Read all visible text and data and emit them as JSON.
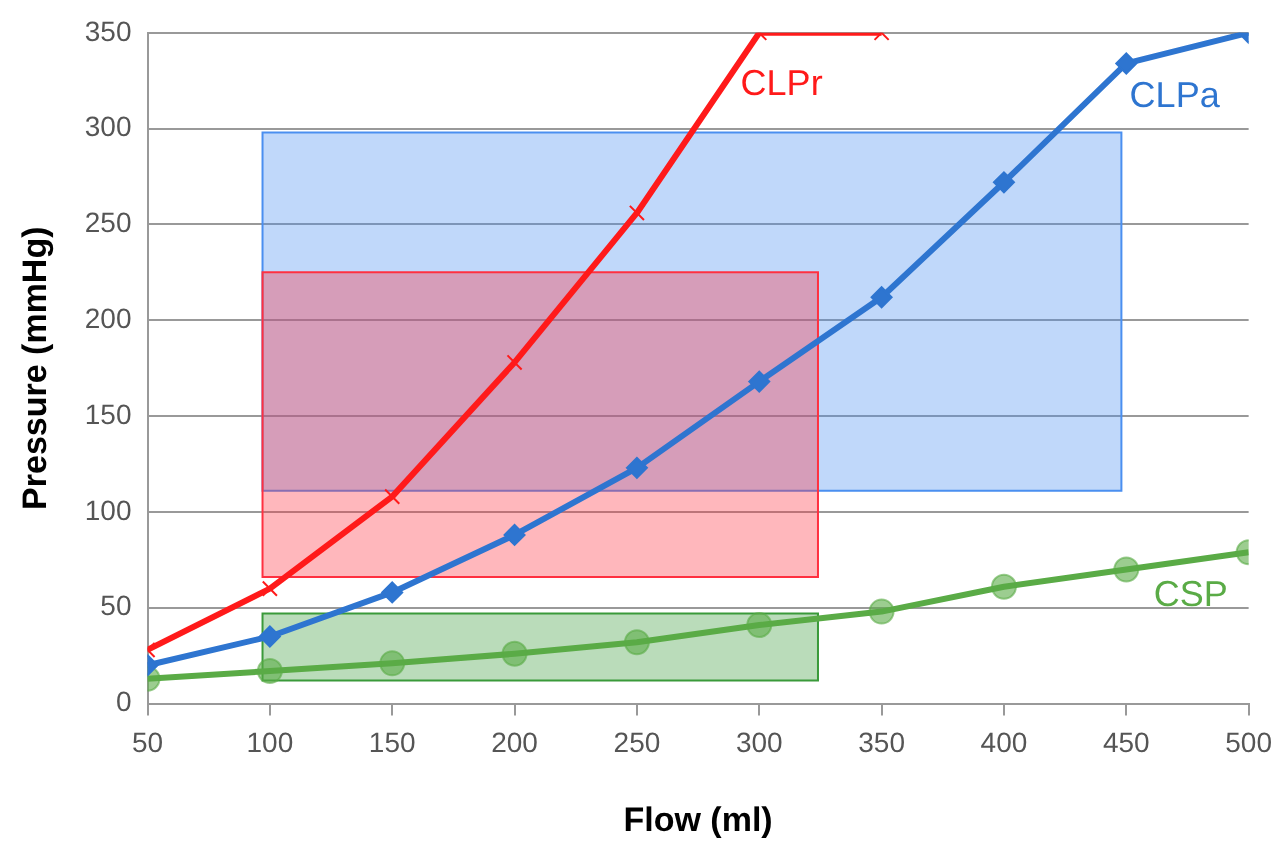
{
  "chart_data": {
    "type": "line",
    "xlabel": "Flow (ml)",
    "ylabel": "Pressure (mmHg)",
    "xlim": [
      50,
      500
    ],
    "xticks": [
      50,
      100,
      150,
      200,
      250,
      300,
      350,
      400,
      450,
      500
    ],
    "ylim": [
      0,
      350
    ],
    "yticks": [
      0,
      50,
      100,
      150,
      200,
      250,
      300,
      350
    ],
    "grid": "y",
    "legend": false,
    "series": [
      {
        "type": "area",
        "color": "#4a8ff0",
        "x": [
          97,
          448
        ],
        "values": [
          null,
          null
        ],
        "lower": [
          111,
          111
        ],
        "upper": [
          298,
          298
        ]
      },
      {
        "type": "area",
        "color": "#ff3040",
        "x": [
          97,
          324
        ],
        "values": [
          null,
          null
        ],
        "lower": [
          66,
          66
        ],
        "upper": [
          225,
          225
        ]
      },
      {
        "type": "area",
        "color": "#3a9a3a",
        "x": [
          97,
          324
        ],
        "values": [
          null,
          null
        ],
        "lower": [
          12,
          12
        ],
        "upper": [
          47,
          47
        ]
      },
      {
        "name": "CLPr",
        "color": "#ff1a1a",
        "marker": "cross",
        "x": [
          50,
          100,
          150,
          200,
          250,
          300,
          350
        ],
        "values": [
          28,
          60,
          108,
          178,
          256,
          350,
          350
        ]
      },
      {
        "name": "CLPa",
        "color": "#2e75d0",
        "marker": "diamond",
        "x": [
          50,
          100,
          150,
          200,
          250,
          300,
          350,
          400,
          450,
          500
        ],
        "values": [
          20,
          35,
          58,
          88,
          123,
          168,
          212,
          272,
          334,
          350
        ]
      },
      {
        "name": "CSP",
        "color": "#5aab46",
        "marker": "circle",
        "x": [
          50,
          100,
          150,
          200,
          250,
          300,
          350,
          400,
          450,
          500
        ],
        "values": [
          13,
          17,
          21,
          26,
          32,
          41,
          48,
          61,
          70,
          79
        ]
      }
    ]
  }
}
